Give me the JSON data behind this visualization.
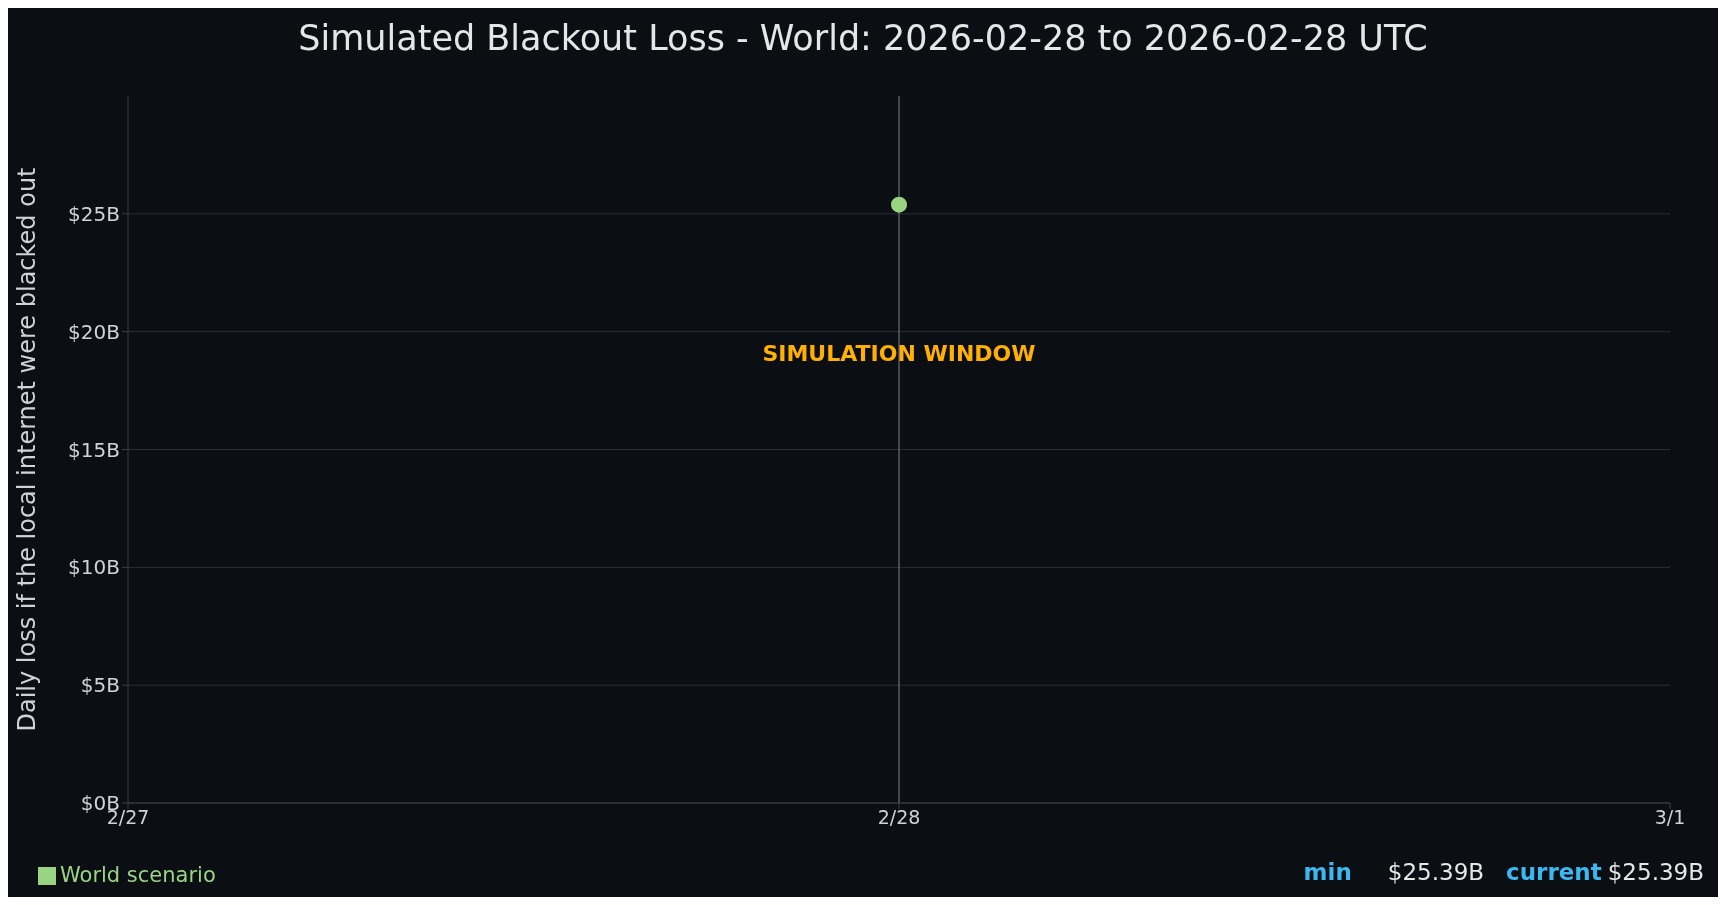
{
  "chart_data": {
    "type": "line",
    "title": "Simulated Blackout Loss - World: 2026-02-28 to 2026-02-28 UTC",
    "ylabel": "Daily loss if the local internet were blacked out",
    "x": [
      "2026-02-28"
    ],
    "series": [
      {
        "name": "World scenario",
        "color": "#98d482",
        "values": [
          25.39
        ]
      }
    ],
    "xlim": [
      "2026-02-27",
      "2026-03-01"
    ],
    "xticks": [
      {
        "value": "2026-02-27",
        "label": "2/27"
      },
      {
        "value": "2026-02-28",
        "label": "2/28"
      },
      {
        "value": "2026-03-01",
        "label": "3/1"
      }
    ],
    "ylim": [
      0,
      30
    ],
    "yticks": [
      {
        "value": 0,
        "label": "$0B"
      },
      {
        "value": 5,
        "label": "$5B"
      },
      {
        "value": 10,
        "label": "$10B"
      },
      {
        "value": 15,
        "label": "$15B"
      },
      {
        "value": 20,
        "label": "$20B"
      },
      {
        "value": 25,
        "label": "$25B"
      }
    ],
    "ref_lines": [
      {
        "axis": "x",
        "value": "2026-02-28",
        "label": "SIMULATION WINDOW",
        "color": "#6b7078"
      }
    ],
    "annotations": [
      "min",
      "$25.39B",
      "current",
      "$25.39B"
    ],
    "grid": "y",
    "legend": "bottom left",
    "marker": "circle",
    "line_style": "solid"
  }
}
